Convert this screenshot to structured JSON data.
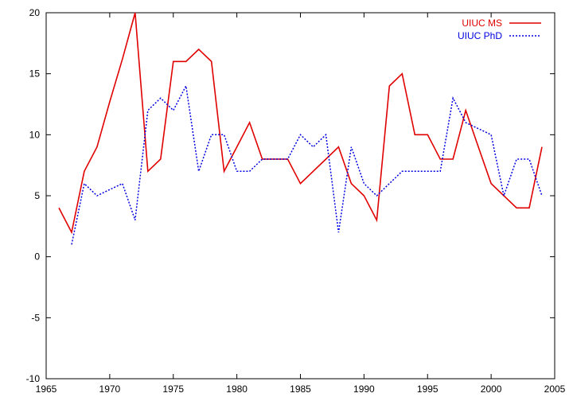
{
  "chart_data": {
    "type": "line",
    "title": "",
    "xlabel": "",
    "ylabel": "",
    "xlim": [
      1965,
      2005
    ],
    "ylim": [
      -10,
      20
    ],
    "xticks": [
      1965,
      1970,
      1975,
      1980,
      1985,
      1990,
      1995,
      2000,
      2005
    ],
    "yticks": [
      -10,
      -5,
      0,
      5,
      10,
      15,
      20
    ],
    "grid": false,
    "legend_position": "top-right",
    "series": [
      {
        "name": "UIUC MS",
        "color": "#e00000",
        "style": "solid",
        "x": [
          1966,
          1967,
          1968,
          1969,
          1970,
          1971,
          1972,
          1973,
          1974,
          1975,
          1976,
          1977,
          1978,
          1979,
          1980,
          1981,
          1982,
          1983,
          1984,
          1985,
          1986,
          1987,
          1988,
          1989,
          1990,
          1991,
          1992,
          1993,
          1994,
          1995,
          1996,
          1997,
          1998,
          1999,
          2000,
          2001,
          2002,
          2003,
          2004
        ],
        "y": [
          4,
          2,
          7,
          9,
          12.7,
          16.2,
          20,
          7,
          8,
          16,
          16,
          17,
          16,
          7,
          9,
          11,
          8,
          8,
          8,
          6,
          7,
          8,
          9,
          6,
          5,
          3,
          14,
          15,
          10,
          10,
          8,
          8,
          12,
          9,
          6,
          5,
          4,
          4,
          9
        ]
      },
      {
        "name": "UIUC PhD",
        "color": "#0000e0",
        "style": "dotted",
        "x": [
          1967,
          1968,
          1969,
          1970,
          1971,
          1972,
          1973,
          1974,
          1975,
          1976,
          1977,
          1978,
          1979,
          1980,
          1981,
          1982,
          1983,
          1984,
          1985,
          1986,
          1987,
          1988,
          1989,
          1990,
          1991,
          1992,
          1993,
          1994,
          1995,
          1996,
          1997,
          1998,
          1999,
          2000,
          2001,
          2002,
          2003,
          2004
        ],
        "y": [
          1,
          6,
          5,
          5.5,
          6,
          3,
          12,
          13,
          12,
          14,
          7,
          10,
          10,
          7,
          7,
          8,
          8,
          8,
          10,
          9,
          10,
          2,
          9,
          6,
          5,
          6,
          7,
          7,
          7,
          7,
          13,
          11,
          10.5,
          10,
          5,
          8,
          8,
          5
        ]
      }
    ]
  }
}
